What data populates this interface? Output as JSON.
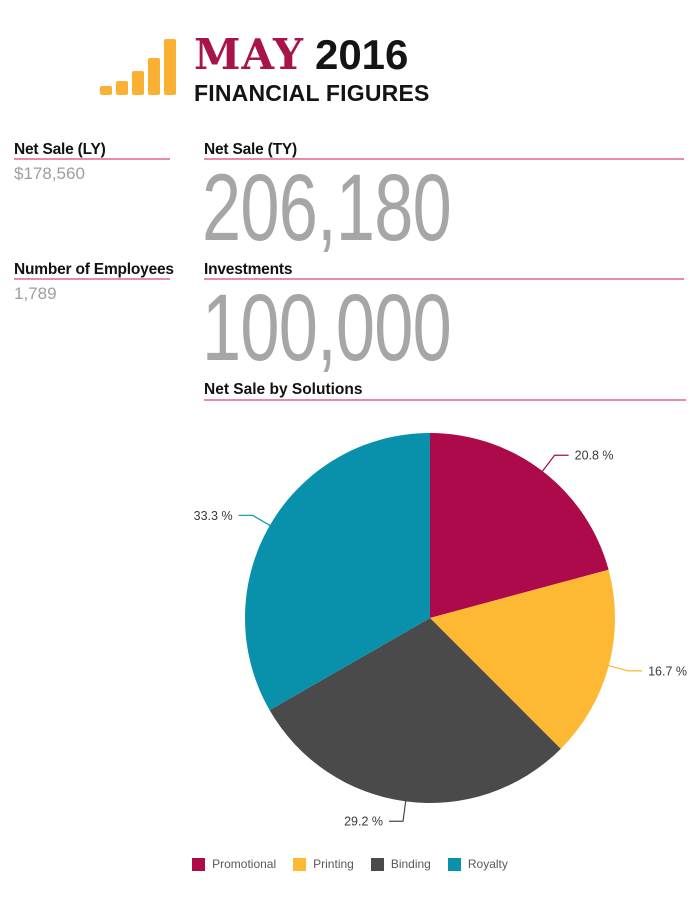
{
  "header": {
    "month": "MAY",
    "year": "2016",
    "subtitle": "FINANCIAL FIGURES",
    "icon": "bar-chart-icon",
    "icon_bar_color": "#FBB034",
    "month_color": "#A81349"
  },
  "stats": {
    "net_sale_ly": {
      "label": "Net Sale (LY)",
      "value": "$178,560"
    },
    "net_sale_ty": {
      "label": "Net Sale (TY)",
      "value": "206,180"
    },
    "employees": {
      "label": "Number of Employees",
      "value": "1,789"
    },
    "investments": {
      "label": "Investments",
      "value": "100,000"
    }
  },
  "section": {
    "title": "Net Sale by Solutions"
  },
  "colors": {
    "underline_pink": "#E88CA5",
    "big_value_gray": "#A6A6A6",
    "small_value_gray": "#9E9E9E",
    "label_black": "#111111",
    "legend_text": "#595959"
  },
  "chart_data": {
    "type": "pie",
    "title": "Net Sale by Solutions",
    "unit": "%",
    "direction": "clockwise",
    "start_angle": "top",
    "legend_position": "bottom",
    "series": [
      {
        "name": "Promotional",
        "value": 20.8,
        "label": "20.8 %",
        "color": "#AC0A4B"
      },
      {
        "name": "Printing",
        "value": 16.7,
        "label": "16.7 %",
        "color": "#FDB933"
      },
      {
        "name": "Binding",
        "value": 29.2,
        "label": "29.2 %",
        "color": "#4A4A4A"
      },
      {
        "name": "Royalty",
        "value": 33.3,
        "label": "33.3 %",
        "color": "#0991AC"
      }
    ],
    "icon_bar_heights": [
      9,
      14,
      24,
      37,
      56
    ]
  }
}
